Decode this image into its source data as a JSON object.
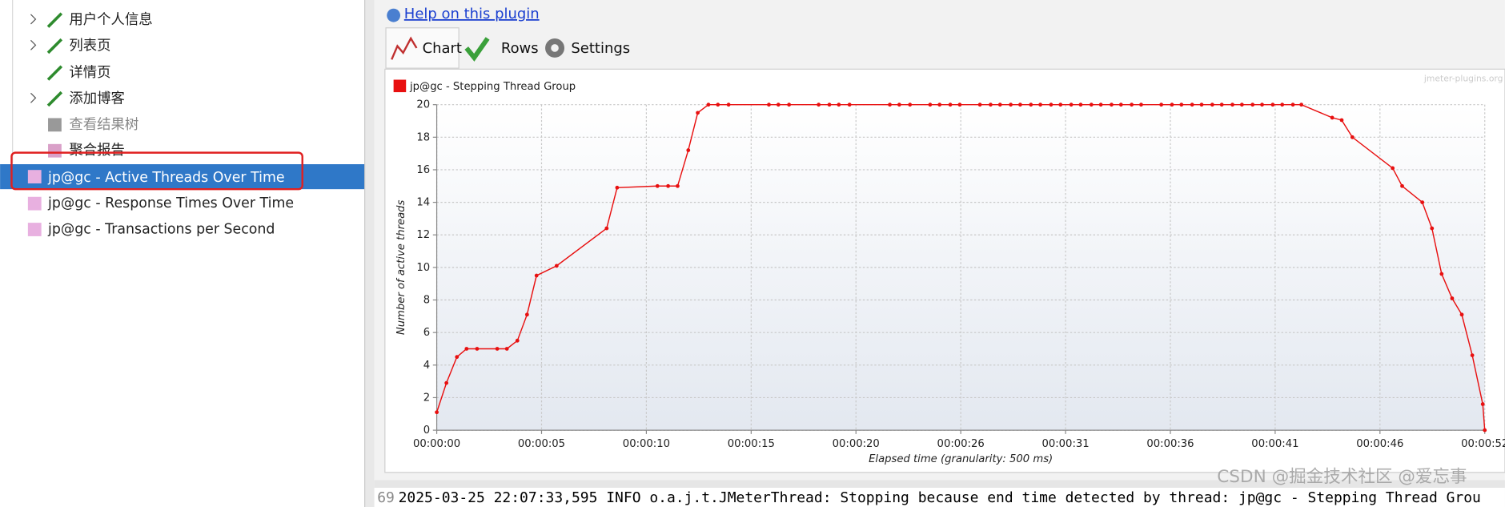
{
  "tree": [
    "用户个人信息",
    "列表页",
    "详情页",
    "添加博客",
    "查看结果树",
    "聚合报告",
    "jp@gc - Active Threads Over Time",
    "jp@gc - Response Times Over Time",
    "jp@gc - Transactions per Second"
  ],
  "help_link": "Help on this plugin",
  "tabs": [
    "Chart",
    "Rows",
    "Settings"
  ],
  "log": {
    "line_number": "69",
    "text": "2025-03-25 22:07:33,595 INFO o.a.j.t.JMeterThread: Stopping because end time detected by thread: jp@gc - Stepping Thread Grou"
  },
  "watermark": "CSDN @掘金技术社区 @爱忘事",
  "chart_data": {
    "type": "line",
    "watermark": "jmeter-plugins.org",
    "x_label": "Elapsed time (granularity: 500 ms)",
    "y_label": "Number of active threads",
    "grid": true,
    "legend": "top-left",
    "xlim": [
      0,
      52
    ],
    "ylim": [
      0,
      20
    ],
    "yticks": [
      0,
      2,
      4,
      6,
      8,
      10,
      12,
      14,
      16,
      18,
      20
    ],
    "xticks": [
      {
        "value": 0,
        "label": "00:00:00"
      },
      {
        "value": 5.2,
        "label": "00:00:05"
      },
      {
        "value": 10.4,
        "label": "00:00:10"
      },
      {
        "value": 15.6,
        "label": "00:00:15"
      },
      {
        "value": 20.8,
        "label": "00:00:20"
      },
      {
        "value": 26,
        "label": "00:00:26"
      },
      {
        "value": 31.2,
        "label": "00:00:31"
      },
      {
        "value": 36.4,
        "label": "00:00:36"
      },
      {
        "value": 41.6,
        "label": "00:00:41"
      },
      {
        "value": 46.8,
        "label": "00:00:46"
      },
      {
        "value": 52,
        "label": "00:00:52"
      }
    ],
    "series": [
      {
        "name": "jp@gc - Stepping Thread Group",
        "color": "#e81010",
        "x": [
          0,
          0.48,
          1.0,
          1.48,
          2.0,
          3.0,
          3.48,
          4.0,
          4.48,
          4.95,
          5.95,
          8.43,
          8.95,
          10.95,
          11.48,
          11.95,
          12.48,
          12.95,
          13.48,
          13.95,
          14.48,
          16.48,
          16.95,
          17.48,
          18.95,
          19.48,
          19.95,
          20.48,
          22.48,
          22.95,
          23.48,
          24.48,
          24.95,
          25.48,
          25.95,
          26.95,
          27.48,
          27.95,
          28.48,
          28.95,
          29.48,
          29.95,
          30.48,
          30.95,
          31.48,
          31.95,
          32.48,
          32.95,
          33.48,
          33.95,
          34.48,
          34.95,
          35.95,
          36.48,
          36.95,
          37.48,
          37.95,
          38.48,
          38.95,
          39.48,
          39.95,
          40.48,
          40.95,
          41.48,
          41.95,
          42.48,
          42.9,
          44.43,
          44.9,
          45.43,
          47.43,
          47.9,
          48.9,
          49.38,
          49.86,
          50.38,
          50.86,
          51.38,
          51.9,
          52
        ],
        "values": [
          1.1,
          2.9,
          4.5,
          5,
          5,
          5,
          5,
          5.5,
          7.1,
          9.5,
          10.1,
          12.4,
          14.9,
          15,
          15,
          15,
          17.2,
          19.5,
          20,
          20,
          20,
          20,
          20,
          20,
          20,
          20,
          20,
          20,
          20,
          20,
          20,
          20,
          20,
          20,
          20,
          20,
          20,
          20,
          20,
          20,
          20,
          20,
          20,
          20,
          20,
          20,
          20,
          20,
          20,
          20,
          20,
          20,
          20,
          20,
          20,
          20,
          20,
          20,
          20,
          20,
          20,
          20,
          20,
          20,
          20,
          20,
          20,
          19.2,
          19.05,
          18,
          16.1,
          15,
          14,
          12.4,
          9.6,
          8.1,
          7.1,
          4.6,
          1.6,
          0
        ]
      }
    ]
  }
}
